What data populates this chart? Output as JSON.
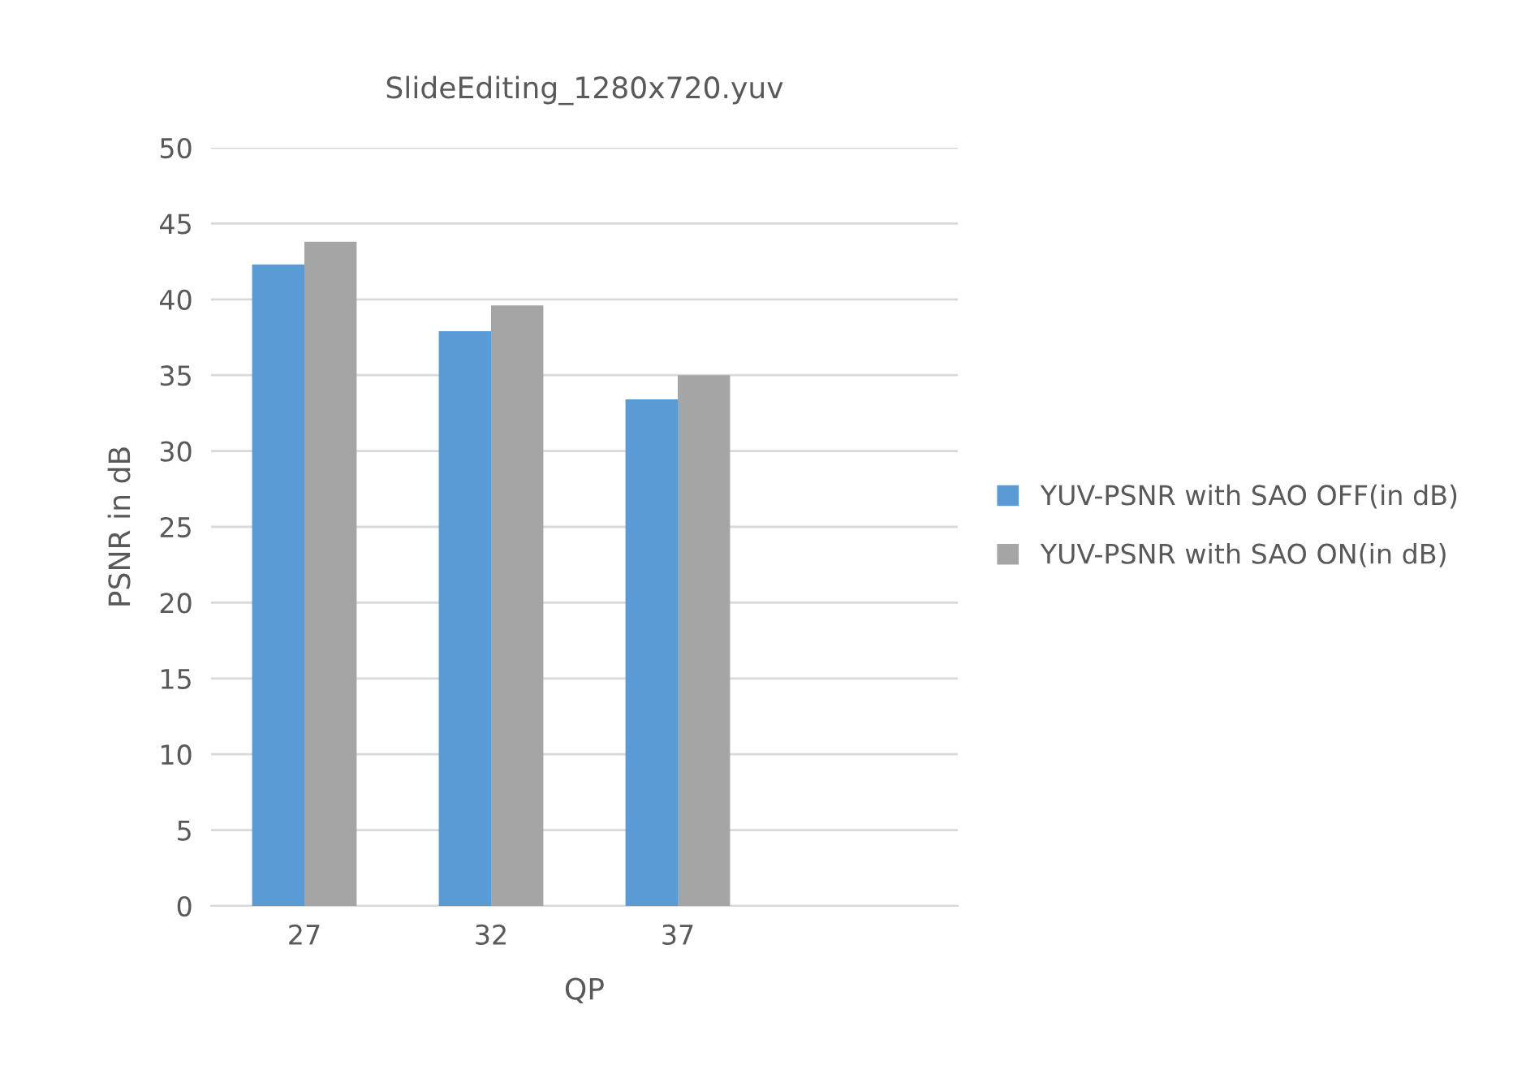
{
  "chart_data": {
    "type": "bar",
    "title": "SlideEditing_1280x720.yuv",
    "xlabel": "QP",
    "ylabel": "PSNR in dB",
    "categories": [
      "27",
      "32",
      "37",
      null
    ],
    "series": [
      {
        "name": "YUV-PSNR with SAO OFF(in dB)",
        "color": "#5b9bd5",
        "values": [
          42.3,
          37.9,
          33.4,
          null
        ]
      },
      {
        "name": "YUV-PSNR with SAO ON(in dB)",
        "color": "#a5a5a5",
        "values": [
          43.8,
          39.6,
          35.0,
          null
        ]
      }
    ],
    "ylim": [
      0,
      50
    ],
    "yticks": [
      0,
      5,
      10,
      15,
      20,
      25,
      30,
      35,
      40,
      45,
      50
    ],
    "grid": "y",
    "legend": "right"
  }
}
